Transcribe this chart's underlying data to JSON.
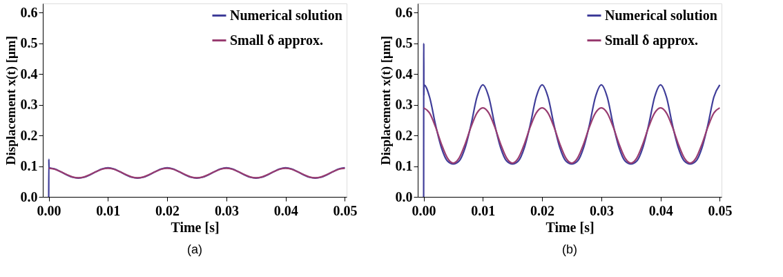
{
  "chart_data": [
    {
      "type": "line",
      "xlabel": "Time [s]",
      "ylabel": "Displacement x(t) [μm]",
      "annotations": [
        "(a)"
      ],
      "xlim": [
        -0.001,
        0.0503
      ],
      "ylim": [
        0,
        0.63
      ],
      "grid": false,
      "legend": "top right",
      "xticks": [
        {
          "value": 0,
          "label": "0.00"
        },
        0.01,
        0.02,
        0.03,
        0.04,
        0.05
      ],
      "yticks": [
        {
          "value": 0,
          "label": "0.0"
        },
        0.1,
        0.2,
        0.3,
        0.4,
        0.5,
        0.6
      ],
      "x": [
        0,
        0.001,
        0.002,
        0.003,
        0.004,
        0.005,
        0.006,
        0.007,
        0.008,
        0.009,
        0.01,
        0.011,
        0.012,
        0.013,
        0.014,
        0.015,
        0.016,
        0.017,
        0.018,
        0.019,
        0.02,
        0.021,
        0.022,
        0.023,
        0.024,
        0.025,
        0.026,
        0.027,
        0.028,
        0.029,
        0.03,
        0.031,
        0.032,
        0.033,
        0.034,
        0.035,
        0.036,
        0.037,
        0.038,
        0.039,
        0.04,
        0.041,
        0.042,
        0.043,
        0.044,
        0.045,
        0.046,
        0.047,
        0.048,
        0.049,
        0.05
      ],
      "series": [
        {
          "name": "Numerical solution",
          "color": "#3f3d99",
          "x": [
            0,
            2e-05,
            4e-05,
            0.001,
            0.002,
            0.003,
            0.004,
            0.005,
            0.006,
            0.007,
            0.008,
            0.009,
            0.01,
            0.011,
            0.012,
            0.013,
            0.014,
            0.015,
            0.016,
            0.017,
            0.018,
            0.019,
            0.02,
            0.021,
            0.022,
            0.023,
            0.024,
            0.025,
            0.026,
            0.027,
            0.028,
            0.029,
            0.03,
            0.031,
            0.032,
            0.033,
            0.034,
            0.035,
            0.036,
            0.037,
            0.038,
            0.039,
            0.04,
            0.041,
            0.042,
            0.043,
            0.044,
            0.045,
            0.046,
            0.047,
            0.048,
            0.049,
            0.05
          ],
          "values": [
            0,
            0.123,
            0.095,
            0.091,
            0.082,
            0.072,
            0.064,
            0.061,
            0.064,
            0.072,
            0.082,
            0.091,
            0.095,
            0.091,
            0.082,
            0.072,
            0.064,
            0.061,
            0.064,
            0.072,
            0.082,
            0.091,
            0.095,
            0.091,
            0.082,
            0.072,
            0.064,
            0.061,
            0.064,
            0.072,
            0.082,
            0.091,
            0.095,
            0.091,
            0.082,
            0.072,
            0.064,
            0.061,
            0.064,
            0.072,
            0.082,
            0.091,
            0.095,
            0.091,
            0.082,
            0.072,
            0.064,
            0.061,
            0.064,
            0.072,
            0.082,
            0.091,
            0.095
          ]
        },
        {
          "name": "Small δ approx.",
          "color": "#993d71",
          "values": [
            0.093,
            0.09,
            0.082,
            0.073,
            0.065,
            0.062,
            0.065,
            0.073,
            0.082,
            0.09,
            0.093,
            0.09,
            0.082,
            0.073,
            0.065,
            0.062,
            0.065,
            0.073,
            0.082,
            0.09,
            0.093,
            0.09,
            0.082,
            0.073,
            0.065,
            0.062,
            0.065,
            0.073,
            0.082,
            0.09,
            0.093,
            0.09,
            0.082,
            0.073,
            0.065,
            0.062,
            0.065,
            0.073,
            0.082,
            0.09,
            0.093,
            0.09,
            0.082,
            0.073,
            0.065,
            0.062,
            0.065,
            0.073,
            0.082,
            0.09,
            0.093
          ]
        }
      ]
    },
    {
      "type": "line",
      "xlabel": "Time [s]",
      "ylabel": "Displacement x(t) [μm]",
      "annotations": [
        "(b)"
      ],
      "xlim": [
        -0.001,
        0.0503
      ],
      "ylim": [
        0,
        0.63
      ],
      "grid": false,
      "legend": "top right",
      "xticks": [
        {
          "value": 0,
          "label": "0.00"
        },
        0.01,
        0.02,
        0.03,
        0.04,
        0.05
      ],
      "yticks": [
        {
          "value": 0,
          "label": "0.0"
        },
        0.1,
        0.2,
        0.3,
        0.4,
        0.5,
        0.6
      ],
      "x": [
        0,
        0.001,
        0.002,
        0.003,
        0.004,
        0.005,
        0.006,
        0.007,
        0.008,
        0.009,
        0.01,
        0.011,
        0.012,
        0.013,
        0.014,
        0.015,
        0.016,
        0.017,
        0.018,
        0.019,
        0.02,
        0.021,
        0.022,
        0.023,
        0.024,
        0.025,
        0.026,
        0.027,
        0.028,
        0.029,
        0.03,
        0.031,
        0.032,
        0.033,
        0.034,
        0.035,
        0.036,
        0.037,
        0.038,
        0.039,
        0.04,
        0.041,
        0.042,
        0.043,
        0.044,
        0.045,
        0.046,
        0.047,
        0.048,
        0.049,
        0.05
      ],
      "series": [
        {
          "name": "Numerical solution",
          "color": "#3f3d99",
          "x": [
            0,
            2e-05,
            4e-05,
            6e-05,
            0.001,
            0.002,
            0.003,
            0.004,
            0.005,
            0.006,
            0.007,
            0.008,
            0.009,
            0.01,
            0.011,
            0.012,
            0.013,
            0.014,
            0.015,
            0.016,
            0.017,
            0.018,
            0.019,
            0.02,
            0.021,
            0.022,
            0.023,
            0.024,
            0.025,
            0.026,
            0.027,
            0.028,
            0.029,
            0.03,
            0.031,
            0.032,
            0.033,
            0.034,
            0.035,
            0.036,
            0.037,
            0.038,
            0.039,
            0.04,
            0.041,
            0.042,
            0.043,
            0.044,
            0.045,
            0.046,
            0.047,
            0.048,
            0.049,
            0.05
          ],
          "values": [
            0,
            0.5,
            0.33,
            0.365,
            0.325,
            0.235,
            0.16,
            0.117,
            0.107,
            0.117,
            0.16,
            0.235,
            0.325,
            0.365,
            0.325,
            0.235,
            0.16,
            0.117,
            0.107,
            0.117,
            0.16,
            0.235,
            0.325,
            0.365,
            0.325,
            0.235,
            0.16,
            0.117,
            0.107,
            0.117,
            0.16,
            0.235,
            0.325,
            0.365,
            0.325,
            0.235,
            0.16,
            0.117,
            0.107,
            0.117,
            0.16,
            0.235,
            0.325,
            0.365,
            0.325,
            0.235,
            0.16,
            0.117,
            0.107,
            0.117,
            0.16,
            0.235,
            0.325,
            0.365
          ]
        },
        {
          "name": "Small δ approx.",
          "color": "#993d71",
          "values": [
            0.29,
            0.273,
            0.228,
            0.172,
            0.127,
            0.11,
            0.127,
            0.172,
            0.228,
            0.273,
            0.29,
            0.273,
            0.228,
            0.172,
            0.127,
            0.11,
            0.127,
            0.172,
            0.228,
            0.273,
            0.29,
            0.273,
            0.228,
            0.172,
            0.127,
            0.11,
            0.127,
            0.172,
            0.228,
            0.273,
            0.29,
            0.273,
            0.228,
            0.172,
            0.127,
            0.11,
            0.127,
            0.172,
            0.228,
            0.273,
            0.29,
            0.273,
            0.228,
            0.172,
            0.127,
            0.11,
            0.127,
            0.172,
            0.228,
            0.273,
            0.29
          ]
        }
      ]
    }
  ]
}
